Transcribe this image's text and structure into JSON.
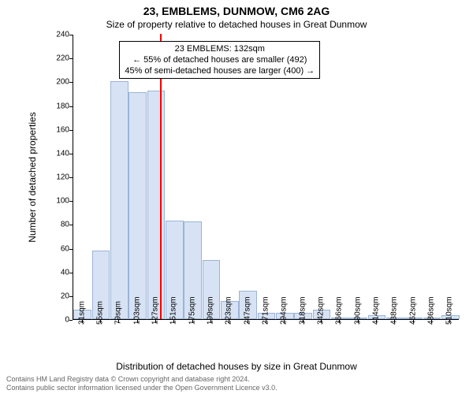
{
  "title_main": "23, EMBLEMS, DUNMOW, CM6 2AG",
  "title_sub": "Size of property relative to detached houses in Great Dunmow",
  "y_label": "Number of detached properties",
  "x_label": "Distribution of detached houses by size in Great Dunmow",
  "footer_line1": "Contains HM Land Registry data © Crown copyright and database right 2024.",
  "footer_line2": "Contains public sector information licensed under the Open Government Licence v3.0.",
  "chart": {
    "type": "histogram",
    "y_min": 0,
    "y_max": 240,
    "y_tick_step": 20,
    "x_categories": [
      "31sqm",
      "55sqm",
      "79sqm",
      "103sqm",
      "127sqm",
      "151sqm",
      "175sqm",
      "199sqm",
      "223sqm",
      "247sqm",
      "271sqm",
      "294sqm",
      "318sqm",
      "342sqm",
      "366sqm",
      "390sqm",
      "414sqm",
      "438sqm",
      "462sqm",
      "486sqm",
      "510sqm"
    ],
    "bar_values": [
      8,
      58,
      200,
      191,
      192,
      83,
      82,
      50,
      15,
      24,
      5,
      5,
      5,
      8,
      0,
      0,
      3,
      0,
      0,
      0,
      3
    ],
    "bar_fill": "#d7e3f4",
    "bar_stroke": "#9cb3d6",
    "background_color": "#ffffff",
    "axis_color": "#000000",
    "tick_fontsize": 10,
    "label_fontsize": 12,
    "marker": {
      "position_index": 4.22,
      "color": "#ff0000",
      "height_value": 240
    },
    "annotation": {
      "line1": "23 EMBLEMS: 132sqm",
      "line2": "← 55% of detached houses are smaller (492)",
      "line3": "45% of semi-detached houses are larger (400) →",
      "box_left_index": 2.0,
      "box_top_value": 235
    }
  }
}
